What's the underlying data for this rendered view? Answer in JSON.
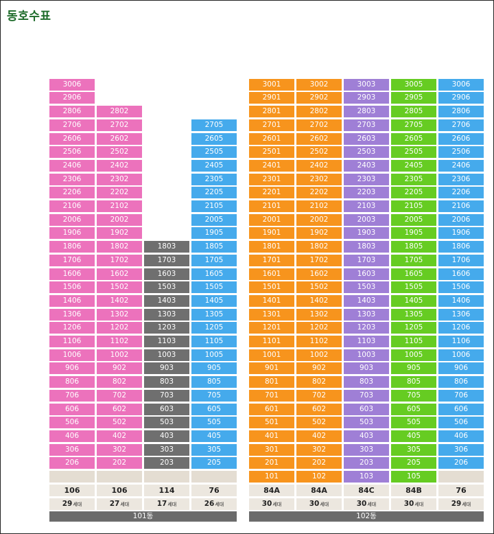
{
  "title": "동호수표",
  "colors": {
    "pink": "#ec72bc",
    "blue": "#45aaec",
    "gray": "#6f6f6f",
    "orange": "#f7941d",
    "purple": "#9f7fd6",
    "green": "#66cc22",
    "empty": "#e4ddd2",
    "info_bg": "#ece7df",
    "building_bar": "#6b6b6b"
  },
  "unit_suffix": "세대",
  "buildings": [
    {
      "name": "101동",
      "lines": [
        {
          "line": "06",
          "color": "pink",
          "top_floor": 30,
          "floors_from": 2,
          "missing_floors": [],
          "first_floor_empty": true,
          "area_type": "106",
          "units": "29"
        },
        {
          "line": "02",
          "color": "pink",
          "top_floor": 28,
          "floors_from": 2,
          "missing_floors": [],
          "first_floor_empty": true,
          "area_type": "106",
          "units": "27"
        },
        {
          "line": "03",
          "color": "gray",
          "top_floor": 18,
          "floors_from": 2,
          "missing_floors": [],
          "first_floor_empty": true,
          "area_type": "114",
          "units": "17"
        },
        {
          "line": "05",
          "color": "blue",
          "top_floor": 27,
          "floors_from": 2,
          "missing_floors": [],
          "first_floor_empty": true,
          "area_type": "76",
          "units": "26"
        }
      ]
    },
    {
      "name": "102동",
      "lines": [
        {
          "line": "01",
          "color": "orange",
          "top_floor": 30,
          "floors_from": 1,
          "missing_floors": [],
          "first_floor_empty": false,
          "area_type": "84A",
          "units": "30"
        },
        {
          "line": "02",
          "color": "orange",
          "top_floor": 30,
          "floors_from": 1,
          "missing_floors": [],
          "first_floor_empty": false,
          "area_type": "84A",
          "units": "30"
        },
        {
          "line": "03",
          "color": "purple",
          "top_floor": 30,
          "floors_from": 1,
          "missing_floors": [],
          "first_floor_empty": false,
          "area_type": "84C",
          "units": "30"
        },
        {
          "line": "05",
          "color": "green",
          "top_floor": 30,
          "floors_from": 1,
          "missing_floors": [],
          "first_floor_empty": false,
          "area_type": "84B",
          "units": "30"
        },
        {
          "line": "06",
          "color": "blue",
          "top_floor": 30,
          "floors_from": 2,
          "missing_floors": [],
          "first_floor_empty": true,
          "area_type": "76",
          "units": "29"
        }
      ]
    }
  ]
}
